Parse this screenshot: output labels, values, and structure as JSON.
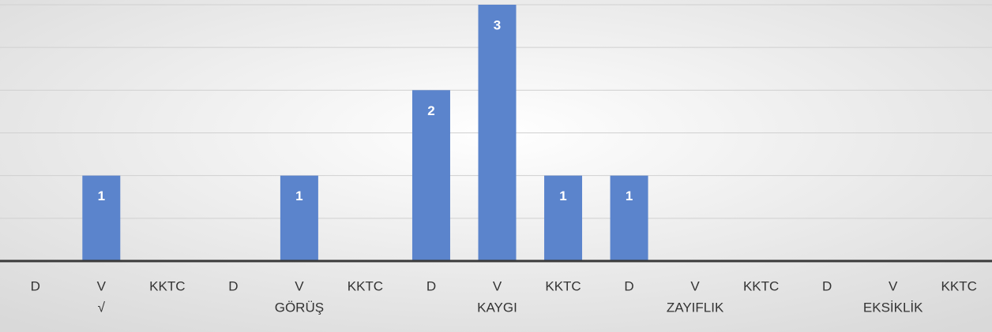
{
  "chart_data": {
    "type": "bar",
    "categories": [
      "D",
      "V",
      "KKTC",
      "D",
      "V",
      "KKTC",
      "D",
      "V",
      "KKTC",
      "D",
      "V",
      "KKTC",
      "D",
      "V",
      "KKTC"
    ],
    "group_labels": [
      "√",
      "GÖRÜŞ",
      "KAYGI",
      "ZAYIFLIK",
      "EKSİKLİK"
    ],
    "values": [
      0,
      1,
      0,
      0,
      1,
      0,
      2,
      3,
      1,
      1,
      0,
      0,
      0,
      0,
      0
    ],
    "value_labels": [
      null,
      "1",
      null,
      null,
      "1",
      null,
      "2",
      "3",
      "1",
      "1",
      null,
      null,
      null,
      null,
      null
    ],
    "color": "#5b84cc",
    "ylim": [
      0,
      3
    ],
    "yticks": [
      0,
      0.5,
      1,
      1.5,
      2,
      2.5,
      3
    ],
    "grid": true
  }
}
